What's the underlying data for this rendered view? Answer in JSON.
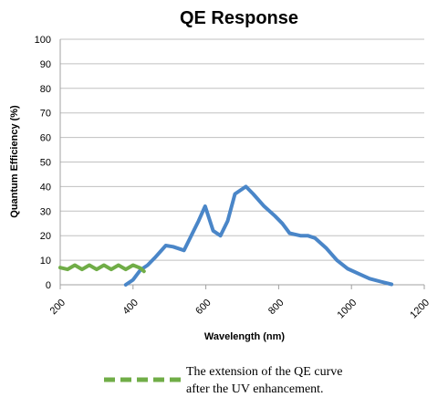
{
  "chart_data": {
    "type": "line",
    "title": "QE Response",
    "xlabel": "Wavelength (nm)",
    "ylabel": "Quantum Efficiency (%)",
    "xlim": [
      200,
      1200
    ],
    "ylim": [
      0,
      100
    ],
    "x_ticks": [
      "200",
      "400",
      "600",
      "800",
      "1000",
      "1200"
    ],
    "y_ticks": [
      "0",
      "10",
      "20",
      "30",
      "40",
      "50",
      "60",
      "70",
      "80",
      "90",
      "100"
    ],
    "grid": true,
    "series": [
      {
        "color": "#4a86c8",
        "style": "solid",
        "points": [
          [
            380,
            0
          ],
          [
            400,
            2
          ],
          [
            420,
            6
          ],
          [
            440,
            8
          ],
          [
            460,
            11
          ],
          [
            490,
            16
          ],
          [
            510,
            15.5
          ],
          [
            540,
            14
          ],
          [
            560,
            20
          ],
          [
            580,
            26
          ],
          [
            598,
            32
          ],
          [
            620,
            22
          ],
          [
            640,
            20
          ],
          [
            660,
            26
          ],
          [
            680,
            37
          ],
          [
            710,
            40
          ],
          [
            730,
            37
          ],
          [
            760,
            32
          ],
          [
            790,
            28
          ],
          [
            810,
            25
          ],
          [
            830,
            21
          ],
          [
            860,
            20
          ],
          [
            880,
            20
          ],
          [
            900,
            19
          ],
          [
            930,
            15
          ],
          [
            960,
            10
          ],
          [
            990,
            6.5
          ],
          [
            1020,
            4.5
          ],
          [
            1050,
            2.5
          ],
          [
            1080,
            1.3
          ],
          [
            1110,
            0.2
          ]
        ]
      },
      {
        "name": "The extension of the QE curve after the UV enhancement.",
        "color": "#70ad47",
        "style": "solid",
        "points": [
          [
            200,
            7
          ],
          [
            220,
            6.3
          ],
          [
            240,
            8
          ],
          [
            260,
            6.3
          ],
          [
            280,
            8
          ],
          [
            300,
            6.3
          ],
          [
            320,
            8
          ],
          [
            340,
            6.3
          ],
          [
            360,
            8
          ],
          [
            380,
            6.3
          ],
          [
            400,
            8
          ],
          [
            420,
            6.8
          ],
          [
            430,
            5.5
          ]
        ]
      }
    ],
    "legend": {
      "placement": "bottom",
      "swatch_color": "#70ad47",
      "swatch_style": "dashed",
      "lines": [
        "The extension of the QE curve",
        "after the UV enhancement."
      ]
    }
  }
}
